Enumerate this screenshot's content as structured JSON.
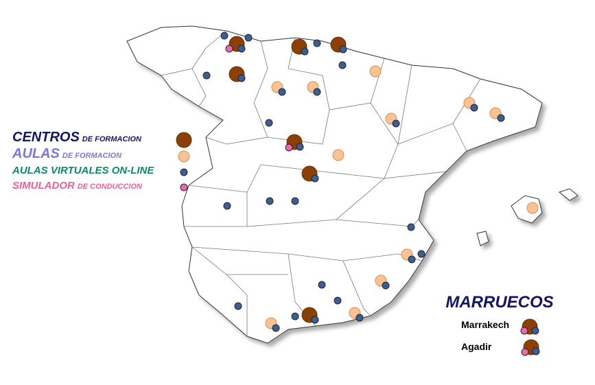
{
  "legend": {
    "items": [
      {
        "label": "CENTROS",
        "sublabel": "DE FORMACION"
      },
      {
        "label": "AULAS",
        "sublabel": "DE FORMACION"
      },
      {
        "label": "AULAS VIRTUALES ON-LINE"
      },
      {
        "label": "SIMULADOR",
        "sublabel": "DE CONDUCCION"
      }
    ]
  },
  "morocco": {
    "title": "MARRUECOS",
    "cities": [
      "Marrakech",
      "Agadir"
    ]
  }
}
